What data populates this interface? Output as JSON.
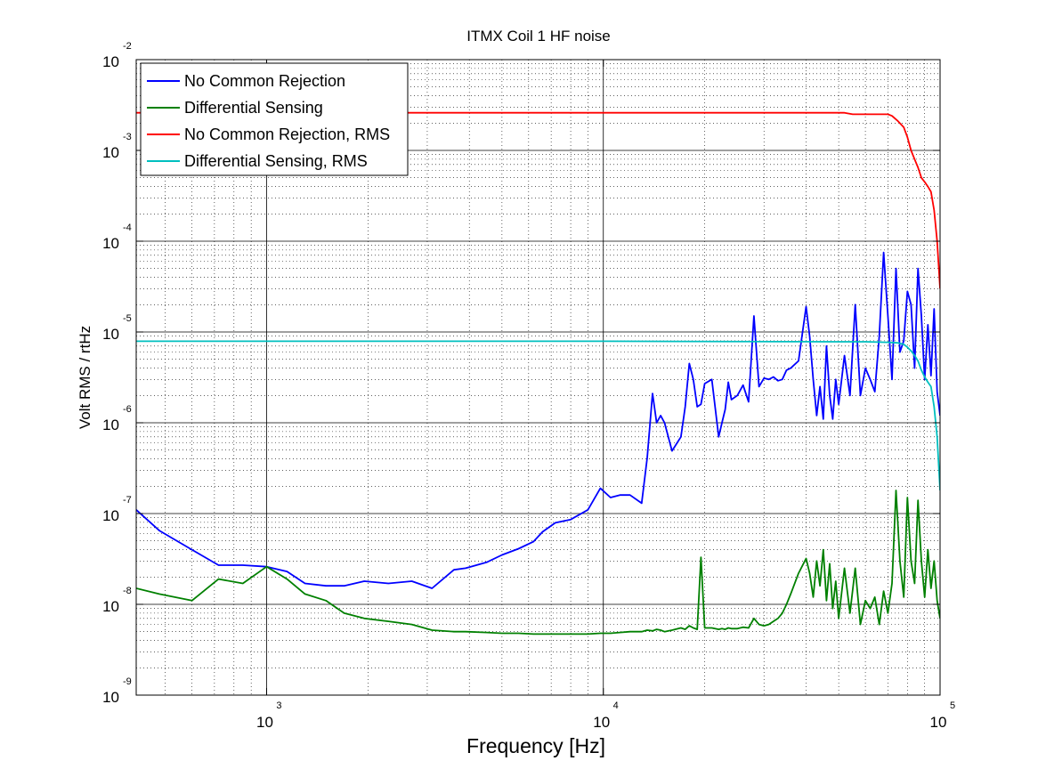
{
  "chart_data": {
    "type": "line",
    "title": "ITMX Coil 1 HF noise",
    "xlabel": "Frequency [Hz]",
    "ylabel": "Volt RMS / rtHz",
    "xscale": "log",
    "yscale": "log",
    "xlim": [
      410,
      100000
    ],
    "ylim": [
      1e-09,
      0.01
    ],
    "grid": true,
    "legend_position": "top-left",
    "x_ticks": [
      {
        "value": 1000,
        "base": "10",
        "exp": "3"
      },
      {
        "value": 10000,
        "base": "10",
        "exp": "4"
      },
      {
        "value": 100000,
        "base": "10",
        "exp": "5"
      }
    ],
    "y_ticks": [
      {
        "value": 1e-09,
        "base": "10",
        "exp": "-9"
      },
      {
        "value": 1e-08,
        "base": "10",
        "exp": "-8"
      },
      {
        "value": 1e-07,
        "base": "10",
        "exp": "-7"
      },
      {
        "value": 1e-06,
        "base": "10",
        "exp": "-6"
      },
      {
        "value": 1e-05,
        "base": "10",
        "exp": "-5"
      },
      {
        "value": 0.0001,
        "base": "10",
        "exp": "-4"
      },
      {
        "value": 0.001,
        "base": "10",
        "exp": "-3"
      },
      {
        "value": 0.01,
        "base": "10",
        "exp": "-2"
      }
    ],
    "series": [
      {
        "name": "No Common Rejection",
        "color": "#0000ff",
        "x": [
          410,
          480,
          600,
          720,
          850,
          1000,
          1150,
          1300,
          1500,
          1700,
          1950,
          2300,
          2700,
          3100,
          3600,
          3900,
          4500,
          5000,
          5600,
          6200,
          6600,
          7200,
          8000,
          9000,
          9800,
          10500,
          11200,
          12000,
          13000,
          13500,
          14000,
          14400,
          14800,
          15200,
          16000,
          17000,
          17500,
          18000,
          18500,
          19000,
          19500,
          20000,
          21000,
          22000,
          22500,
          23000,
          23500,
          24000,
          25000,
          26000,
          27000,
          28000,
          29000,
          30000,
          31000,
          32000,
          33000,
          34000,
          35000,
          36000,
          38000,
          40000,
          41000,
          42000,
          43000,
          44000,
          45000,
          46000,
          47000,
          48000,
          49000,
          50000,
          52000,
          54000,
          56000,
          58000,
          60000,
          62000,
          64000,
          66000,
          68000,
          70000,
          72000,
          74000,
          76000,
          78000,
          80000,
          82000,
          84000,
          86000,
          88000,
          90000,
          92000,
          94000,
          96000,
          98000,
          100000
        ],
        "y": [
          1.1e-07,
          6.5e-08,
          4e-08,
          2.7e-08,
          2.7e-08,
          2.6e-08,
          2.3e-08,
          1.7e-08,
          1.6e-08,
          1.6e-08,
          1.8e-08,
          1.7e-08,
          1.8e-08,
          1.5e-08,
          2.4e-08,
          2.5e-08,
          2.9e-08,
          3.5e-08,
          4.1e-08,
          4.9e-08,
          6.3e-08,
          7.9e-08,
          8.6e-08,
          1.1e-07,
          1.9e-07,
          1.5e-07,
          1.6e-07,
          1.6e-07,
          1.3e-07,
          4.1e-07,
          2.1e-06,
          1e-06,
          1.2e-06,
          1e-06,
          4.9e-07,
          7e-07,
          1.5e-06,
          4.5e-06,
          3e-06,
          1.5e-06,
          1.6e-06,
          2.7e-06,
          3e-06,
          7e-07,
          1e-06,
          1.4e-06,
          2.8e-06,
          1.8e-06,
          2e-06,
          2.6e-06,
          1.7e-06,
          1.5e-05,
          2.5e-06,
          3.1e-06,
          3e-06,
          3.2e-06,
          2.9e-06,
          3e-06,
          3.8e-06,
          4e-06,
          4.8e-06,
          1.9e-05,
          9e-06,
          3e-06,
          1.2e-06,
          2.5e-06,
          1.1e-06,
          7e-06,
          2e-06,
          1.1e-06,
          3e-06,
          1.6e-06,
          5.5e-06,
          2e-06,
          2e-05,
          2e-06,
          4e-06,
          3e-06,
          2.2e-06,
          9e-06,
          7.5e-05,
          1.5e-05,
          3e-06,
          5e-05,
          6e-06,
          8e-06,
          2.8e-05,
          2e-05,
          4e-06,
          5e-05,
          1.5e-05,
          3e-06,
          1.2e-05,
          3.3e-06,
          1.8e-05,
          2.2e-06,
          1.2e-06
        ]
      },
      {
        "name": "Differential Sensing",
        "color": "#008000",
        "x": [
          410,
          480,
          600,
          720,
          850,
          1000,
          1150,
          1300,
          1500,
          1700,
          1950,
          2300,
          2700,
          3100,
          3600,
          3900,
          4500,
          5000,
          5600,
          6200,
          6600,
          7200,
          8000,
          9000,
          9800,
          10500,
          11200,
          12000,
          13000,
          13500,
          14000,
          14400,
          14800,
          15200,
          16000,
          17000,
          17500,
          18000,
          18500,
          19000,
          19500,
          20000,
          21000,
          22000,
          22500,
          23000,
          23500,
          24000,
          25000,
          26000,
          27000,
          28000,
          29000,
          30000,
          31000,
          32000,
          33000,
          34000,
          35000,
          36000,
          38000,
          40000,
          41000,
          42000,
          43000,
          44000,
          45000,
          46000,
          47000,
          48000,
          49000,
          50000,
          52000,
          54000,
          56000,
          58000,
          60000,
          62000,
          64000,
          66000,
          68000,
          70000,
          72000,
          74000,
          76000,
          78000,
          80000,
          82000,
          84000,
          86000,
          88000,
          90000,
          92000,
          94000,
          96000,
          98000,
          100000
        ],
        "y": [
          1.5e-08,
          1.3e-08,
          1.1e-08,
          1.9e-08,
          1.7e-08,
          2.6e-08,
          1.9e-08,
          1.3e-08,
          1.1e-08,
          8e-09,
          7e-09,
          6.5e-09,
          6e-09,
          5.2e-09,
          5e-09,
          5e-09,
          4.9e-09,
          4.8e-09,
          4.8e-09,
          4.7e-09,
          4.7e-09,
          4.7e-09,
          4.7e-09,
          4.7e-09,
          4.8e-09,
          4.8e-09,
          4.9e-09,
          5e-09,
          5e-09,
          5.2e-09,
          5.1e-09,
          5.3e-09,
          5.2e-09,
          5e-09,
          5.2e-09,
          5.5e-09,
          5.3e-09,
          5.8e-09,
          5.5e-09,
          5.3e-09,
          3.3e-08,
          5.5e-09,
          5.5e-09,
          5.3e-09,
          5.4e-09,
          5.3e-09,
          5.5e-09,
          5.4e-09,
          5.4e-09,
          5.6e-09,
          5.5e-09,
          7e-09,
          6e-09,
          5.8e-09,
          6e-09,
          6.5e-09,
          7e-09,
          8e-09,
          1e-08,
          1.3e-08,
          2.2e-08,
          3.2e-08,
          2.2e-08,
          1.2e-08,
          3e-08,
          1.6e-08,
          4e-08,
          1.1e-08,
          2.8e-08,
          9e-09,
          1.8e-08,
          7e-09,
          2.5e-08,
          8e-09,
          2.5e-08,
          6e-09,
          1.1e-08,
          9e-09,
          1.2e-08,
          6e-09,
          1.4e-08,
          8e-09,
          1.7e-08,
          1.8e-07,
          3e-08,
          1.2e-08,
          1.5e-07,
          3e-08,
          1.7e-08,
          1.4e-07,
          3e-08,
          1.2e-08,
          4e-08,
          1.5e-08,
          3e-08,
          1.1e-08,
          7e-09
        ]
      },
      {
        "name": "No Common Rejection, RMS",
        "color": "#ff0000",
        "x": [
          410,
          1000,
          10000,
          50000,
          52000,
          55000,
          60000,
          65000,
          70000,
          72000,
          75000,
          78000,
          80000,
          82000,
          84000,
          86000,
          88000,
          90000,
          92000,
          94000,
          96000,
          98000,
          100000
        ],
        "y": [
          0.0026,
          0.0026,
          0.0026,
          0.0026,
          0.0026,
          0.0025,
          0.0025,
          0.0025,
          0.0025,
          0.0024,
          0.0021,
          0.0018,
          0.0014,
          0.001,
          0.0008,
          0.00065,
          0.0005,
          0.00045,
          0.0004,
          0.00035,
          0.00022,
          0.0001,
          3e-05
        ]
      },
      {
        "name": "Differential Sensing, RMS",
        "color": "#00bfbf",
        "x": [
          410,
          1000,
          10000,
          50000,
          60000,
          70000,
          75000,
          78000,
          80000,
          82000,
          84000,
          86000,
          88000,
          90000,
          92000,
          94000,
          96000,
          98000,
          100000
        ],
        "y": [
          7.9e-06,
          7.9e-06,
          7.9e-06,
          7.8e-06,
          7.8e-06,
          7.7e-06,
          7.6e-06,
          7.3e-06,
          6.8e-06,
          6.2e-06,
          5.5e-06,
          4.8e-06,
          3.8e-06,
          3.2e-06,
          2.8e-06,
          2.5e-06,
          1.5e-06,
          7e-07,
          1.8e-07
        ]
      }
    ]
  }
}
